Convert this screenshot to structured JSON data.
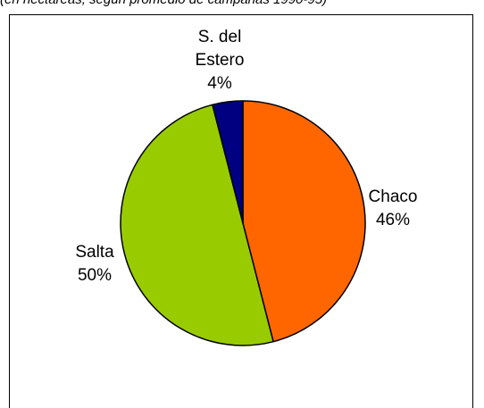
{
  "header": {
    "caption": "(en hectáreas, según promedio de campañas 1990-95)"
  },
  "chart_data": {
    "type": "pie",
    "title": "",
    "slices": [
      {
        "label_lines": [
          "Chaco"
        ],
        "value": 46,
        "pct": "46%",
        "color": "#FF6600"
      },
      {
        "label_lines": [
          "Salta"
        ],
        "value": 50,
        "pct": "50%",
        "color": "#99CC00"
      },
      {
        "label_lines": [
          "S. del",
          "Estero"
        ],
        "value": 4,
        "pct": "4%",
        "color": "#000080"
      }
    ],
    "start": "12 o'clock",
    "direction": "clockwise",
    "legend": "none",
    "data_labels": "category and percentage"
  }
}
